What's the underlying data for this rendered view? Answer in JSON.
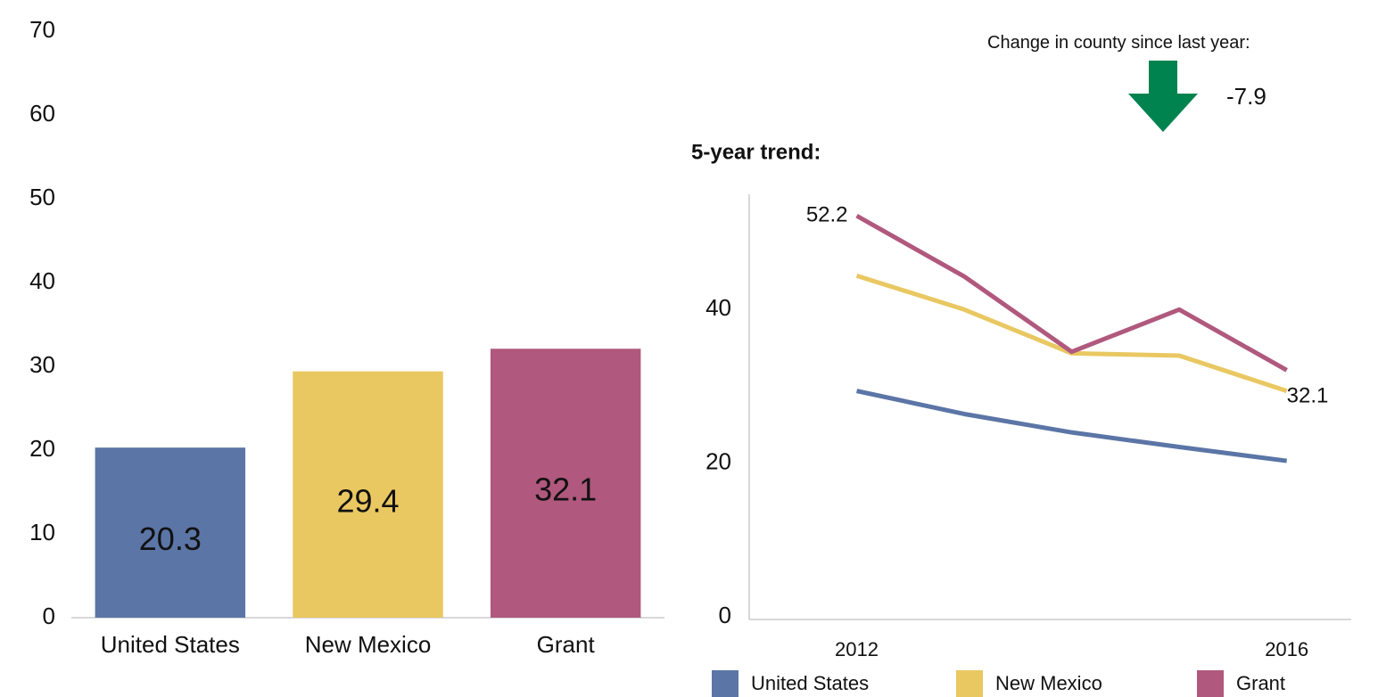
{
  "chart_data": [
    {
      "type": "bar",
      "categories": [
        "United States",
        "New Mexico",
        "Grant"
      ],
      "values": [
        20.3,
        29.4,
        32.1
      ],
      "colors": [
        "#5b75a6",
        "#e9c862",
        "#b0587d"
      ],
      "ylim": [
        0,
        70
      ],
      "yticks": [
        0,
        10,
        20,
        30,
        40,
        50,
        60,
        70
      ],
      "grid": false
    },
    {
      "type": "line",
      "title": "5-year trend:",
      "x": [
        2012,
        2013,
        2014,
        2015,
        2016
      ],
      "xlim": [
        2011,
        2016.6
      ],
      "xticks": [
        2012,
        2016
      ],
      "ylim": [
        0,
        55
      ],
      "yticks": [
        0,
        20,
        40
      ],
      "grid": false,
      "legend": "bottom",
      "series": [
        {
          "name": "United States",
          "color": "#5b75a6",
          "values": [
            29.4,
            26.4,
            24.0,
            22.1,
            20.3
          ]
        },
        {
          "name": "New Mexico",
          "color": "#e9c862",
          "values": [
            44.4,
            40.0,
            34.3,
            34.0,
            29.4
          ]
        },
        {
          "name": "Grant",
          "color": "#b0587d",
          "values": [
            52.2,
            44.3,
            34.5,
            40.0,
            32.1
          ]
        }
      ]
    }
  ],
  "annotation": {
    "text": "Change in county since last year:",
    "value": -7.9,
    "color": "#00834f"
  }
}
